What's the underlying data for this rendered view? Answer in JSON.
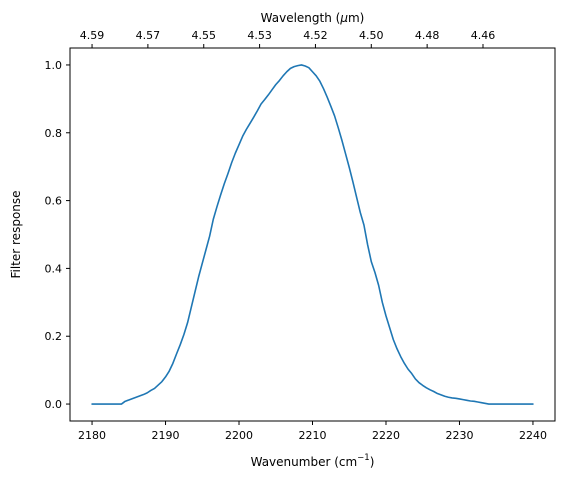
{
  "chart_data": {
    "type": "line",
    "xlabel": "Wavenumber (cm",
    "xlabel_sup": "−1",
    "xlabel_tail": ")",
    "ylabel": "Filter response",
    "top_xlabel": "Wavelength (",
    "top_xlabel_mu": "μ",
    "top_xlabel_tail": "m)",
    "xlim": [
      2177,
      2243
    ],
    "ylim": [
      -0.05,
      1.05
    ],
    "x_ticks": [
      2180,
      2190,
      2200,
      2210,
      2220,
      2230,
      2240
    ],
    "x_tick_labels": [
      "2180",
      "2190",
      "2200",
      "2210",
      "2220",
      "2230",
      "2240"
    ],
    "y_ticks": [
      0.0,
      0.2,
      0.4,
      0.6,
      0.8,
      1.0
    ],
    "y_tick_labels": [
      "0.0",
      "0.2",
      "0.4",
      "0.6",
      "0.8",
      "1.0"
    ],
    "top_ticks": [
      2180,
      2187.6,
      2195.2,
      2202.8,
      2210.4,
      2218,
      2225.6,
      2233.2
    ],
    "top_tick_labels": [
      "4.59",
      "4.57",
      "4.55",
      "4.53",
      "4.52",
      "4.50",
      "4.48",
      "4.46"
    ],
    "series": [
      {
        "color": "#1f77b4",
        "x": [
          2180,
          2181,
          2182,
          2183,
          2184,
          2184.5,
          2185,
          2185.5,
          2186,
          2186.5,
          2187,
          2187.5,
          2188,
          2188.5,
          2189,
          2189.5,
          2190,
          2190.5,
          2191,
          2191.5,
          2192,
          2192.5,
          2193,
          2193.5,
          2194,
          2194.5,
          2195,
          2195.5,
          2196,
          2196.5,
          2197,
          2197.5,
          2198,
          2198.5,
          2199,
          2199.5,
          2200,
          2200.5,
          2201,
          2201.5,
          2202,
          2202.5,
          2203,
          2203.5,
          2204,
          2204.5,
          2205,
          2205.5,
          2206,
          2206.5,
          2207,
          2207.5,
          2208,
          2208.5,
          2209,
          2209.5,
          2210,
          2210.5,
          2211,
          2211.5,
          2212,
          2212.5,
          2213,
          2213.5,
          2214,
          2214.5,
          2215,
          2215.5,
          2216,
          2216.5,
          2217,
          2217.5,
          2218,
          2218.5,
          2219,
          2219.5,
          2220,
          2220.5,
          2221,
          2221.5,
          2222,
          2222.5,
          2223,
          2223.5,
          2224,
          2224.5,
          2225,
          2225.5,
          2226,
          2226.5,
          2227,
          2227.5,
          2228,
          2228.5,
          2229,
          2229.5,
          2230,
          2230.5,
          2231,
          2231.5,
          2232,
          2232.5,
          2233,
          2234,
          2235,
          2236,
          2237,
          2238,
          2239,
          2240
        ],
        "y": [
          0.0,
          0.0,
          0.0,
          0.0,
          0.0,
          0.008,
          0.012,
          0.016,
          0.02,
          0.024,
          0.028,
          0.033,
          0.04,
          0.046,
          0.056,
          0.066,
          0.08,
          0.097,
          0.12,
          0.148,
          0.175,
          0.205,
          0.24,
          0.285,
          0.33,
          0.375,
          0.415,
          0.455,
          0.495,
          0.545,
          0.582,
          0.617,
          0.65,
          0.68,
          0.712,
          0.74,
          0.765,
          0.79,
          0.81,
          0.828,
          0.846,
          0.865,
          0.885,
          0.898,
          0.912,
          0.927,
          0.942,
          0.954,
          0.968,
          0.98,
          0.99,
          0.995,
          0.998,
          1.0,
          0.997,
          0.992,
          0.98,
          0.968,
          0.952,
          0.93,
          0.905,
          0.878,
          0.85,
          0.815,
          0.778,
          0.738,
          0.698,
          0.655,
          0.61,
          0.565,
          0.528,
          0.47,
          0.42,
          0.388,
          0.35,
          0.3,
          0.26,
          0.225,
          0.19,
          0.163,
          0.14,
          0.12,
          0.103,
          0.09,
          0.074,
          0.063,
          0.055,
          0.048,
          0.042,
          0.037,
          0.031,
          0.027,
          0.023,
          0.02,
          0.018,
          0.017,
          0.015,
          0.013,
          0.011,
          0.009,
          0.008,
          0.006,
          0.004,
          0.0,
          0.0,
          0.0,
          0.0,
          0.0,
          0.0,
          0.0
        ]
      }
    ]
  }
}
